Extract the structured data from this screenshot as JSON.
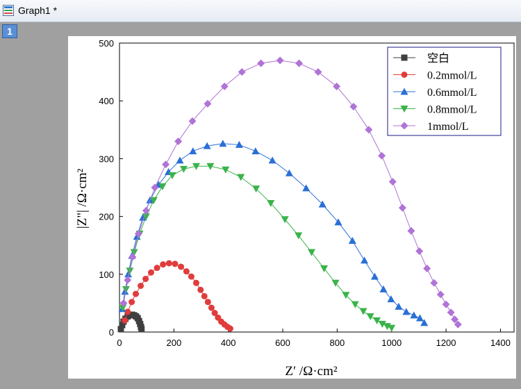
{
  "window": {
    "title": "Graph1 *",
    "layer_label": "1"
  },
  "chart_data": {
    "type": "scatter",
    "xlabel": "Z′ /Ω·cm²",
    "ylabel": "|Z\"| /Ω·cm²",
    "xlim": [
      0,
      1450
    ],
    "ylim": [
      0,
      500
    ],
    "xticks": [
      0,
      200,
      400,
      600,
      800,
      1000,
      1200,
      1400
    ],
    "yticks": [
      0,
      100,
      200,
      300,
      400,
      500
    ],
    "grid": false,
    "legend_position": "top-right",
    "series": [
      {
        "name": "空白",
        "color": "#3f3f3f",
        "marker": "square",
        "x": [
          5,
          10,
          15,
          22,
          30,
          38,
          46,
          54,
          61,
          67,
          72,
          76,
          79,
          81
        ],
        "y": [
          5,
          12,
          18,
          23,
          27,
          29,
          30,
          29,
          27,
          24,
          19,
          14,
          9,
          5
        ]
      },
      {
        "name": "0.2mmol/L",
        "color": "#e03c3c",
        "marker": "circle",
        "x": [
          20,
          30,
          45,
          60,
          78,
          96,
          116,
          138,
          160,
          182,
          204,
          226,
          246,
          264,
          282,
          298,
          312,
          325,
          338,
          350,
          362,
          374,
          386,
          397,
          407
        ],
        "y": [
          20,
          35,
          52,
          66,
          80,
          92,
          103,
          111,
          117,
          119,
          118,
          113,
          105,
          96,
          85,
          73,
          62,
          52,
          42,
          33,
          25,
          18,
          13,
          9,
          6
        ]
      },
      {
        "name": "0.6mmol/L",
        "color": "#2a6fd6",
        "marker": "triangle-up",
        "x": [
          10,
          20,
          32,
          46,
          64,
          86,
          112,
          144,
          180,
          222,
          270,
          322,
          380,
          440,
          500,
          562,
          624,
          686,
          746,
          804,
          856,
          900,
          938,
          970,
          998,
          1026,
          1054,
          1082,
          1104,
          1120
        ],
        "y": [
          40,
          70,
          100,
          132,
          165,
          198,
          228,
          255,
          277,
          297,
          313,
          322,
          326,
          324,
          313,
          297,
          275,
          249,
          221,
          190,
          158,
          124,
          96,
          74,
          57,
          44,
          35,
          29,
          24,
          16
        ]
      },
      {
        "name": "0.8mmol/L",
        "color": "#3ab34a",
        "marker": "triangle-down",
        "x": [
          12,
          24,
          38,
          54,
          74,
          98,
          126,
          158,
          194,
          236,
          282,
          334,
          390,
          446,
          502,
          556,
          608,
          658,
          706,
          752,
          794,
          832,
          866,
          896,
          922,
          946,
          966,
          984,
          1000
        ],
        "y": [
          42,
          74,
          106,
          138,
          170,
          200,
          228,
          252,
          271,
          282,
          287,
          287,
          281,
          268,
          248,
          223,
          195,
          167,
          138,
          110,
          85,
          64,
          48,
          36,
          27,
          20,
          14,
          10,
          7
        ]
      },
      {
        "name": "1mmol/L",
        "color": "#b073d6",
        "marker": "diamond",
        "x": [
          15,
          30,
          48,
          70,
          98,
          130,
          170,
          216,
          268,
          324,
          386,
          450,
          520,
          590,
          660,
          730,
          798,
          860,
          916,
          964,
          1004,
          1040,
          1072,
          1102,
          1130,
          1156,
          1180,
          1200,
          1218,
          1232,
          1244
        ],
        "y": [
          50,
          90,
          130,
          170,
          210,
          250,
          290,
          330,
          365,
          395,
          425,
          450,
          465,
          470,
          465,
          450,
          425,
          390,
          350,
          305,
          260,
          215,
          175,
          140,
          110,
          85,
          65,
          48,
          34,
          22,
          13
        ]
      }
    ]
  }
}
